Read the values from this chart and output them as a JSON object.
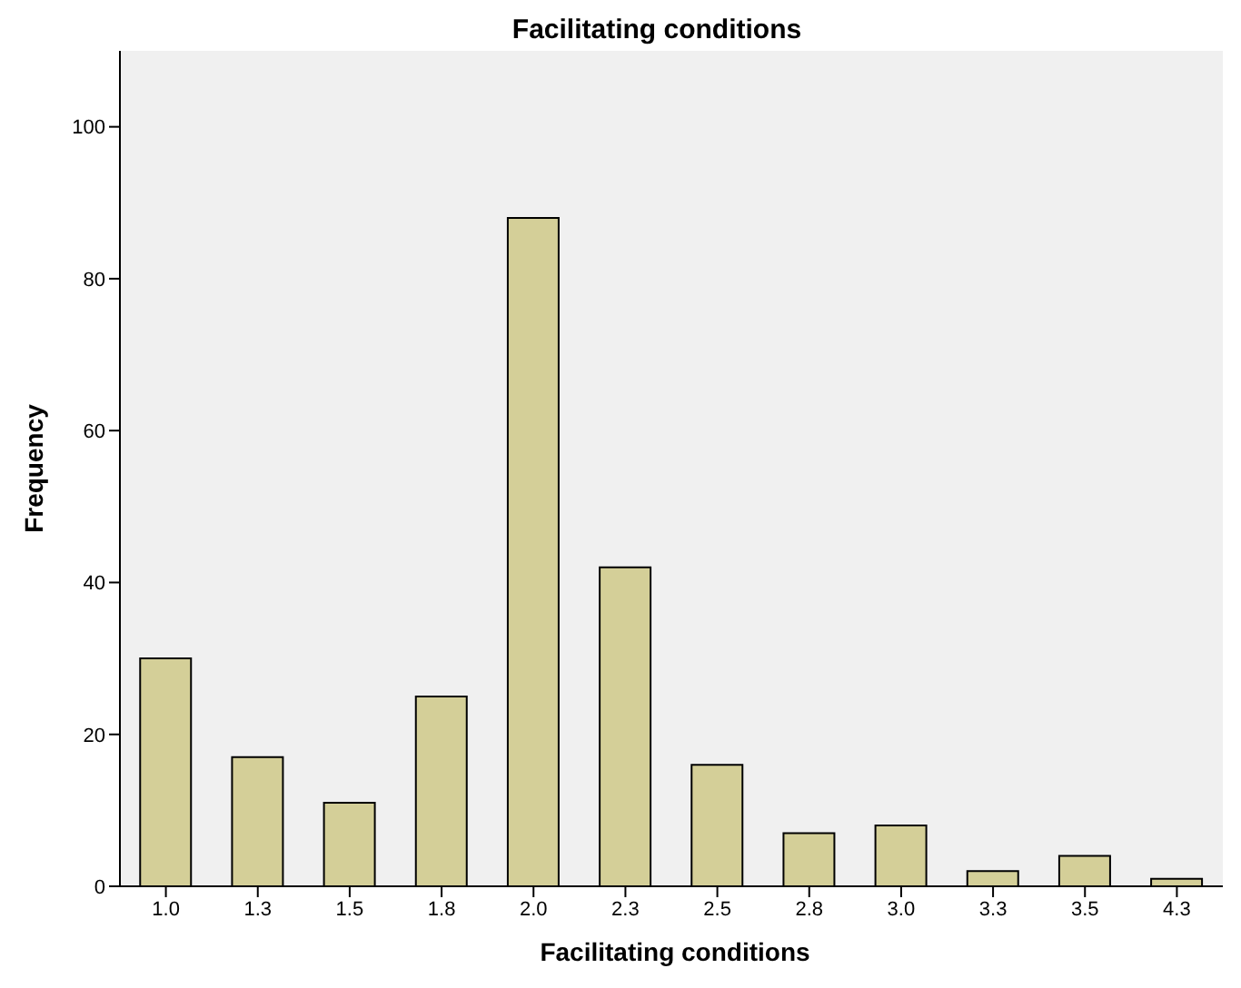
{
  "chart_data": {
    "type": "bar",
    "title": "Facilitating conditions",
    "xlabel": "Facilitating conditions",
    "ylabel": "Frequency",
    "categories": [
      "1.0",
      "1.3",
      "1.5",
      "1.8",
      "2.0",
      "2.3",
      "2.5",
      "2.8",
      "3.0",
      "3.3",
      "3.5",
      "4.3"
    ],
    "values": [
      30,
      17,
      11,
      25,
      88,
      42,
      16,
      7,
      8,
      2,
      4,
      1
    ],
    "color": "#d4cf98",
    "ylim": [
      0,
      110
    ],
    "yticks": [
      0,
      20,
      40,
      60,
      80,
      100
    ]
  }
}
